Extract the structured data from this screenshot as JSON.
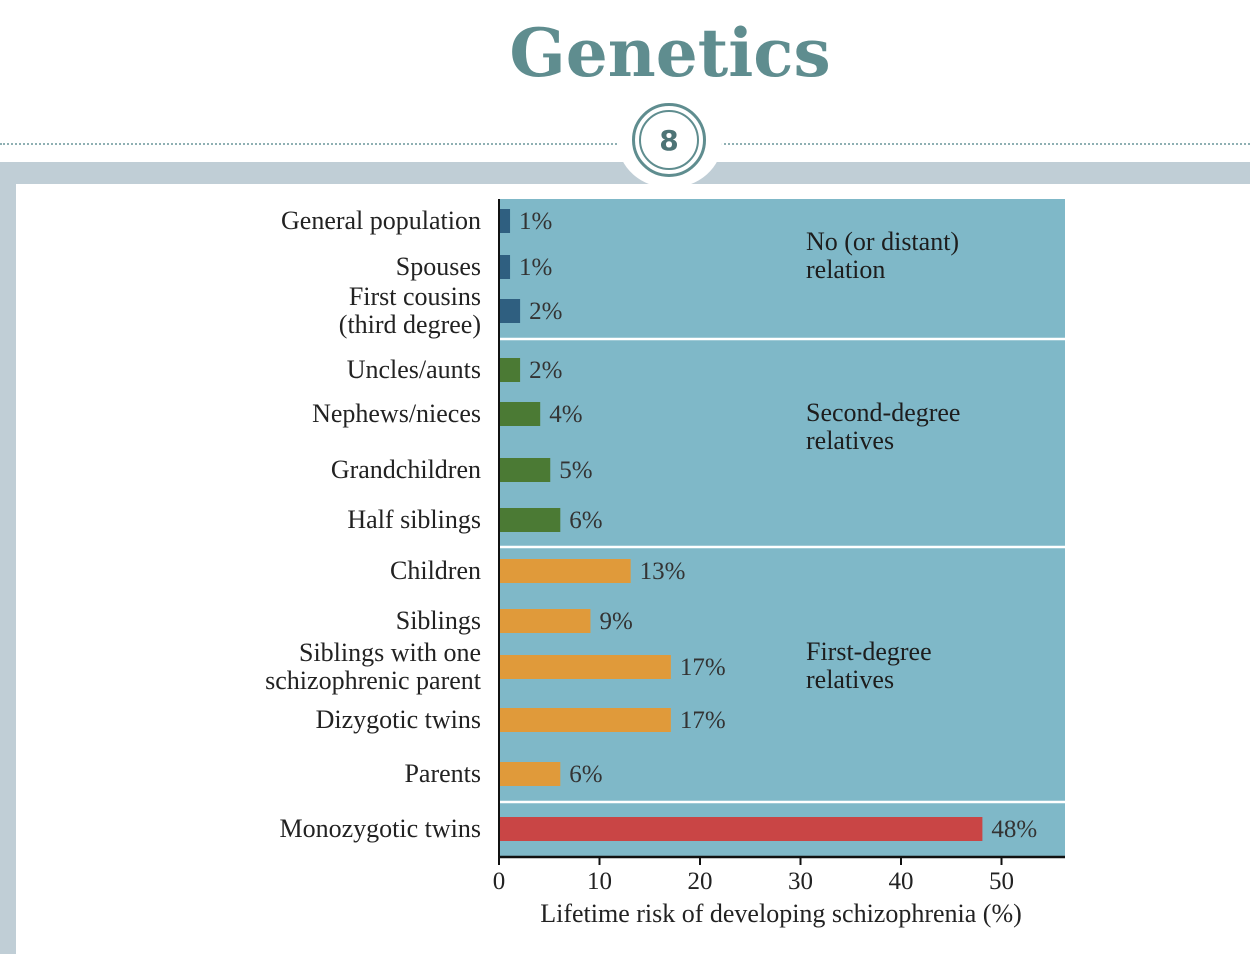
{
  "slide": {
    "title": "Genetics",
    "page_number": "8"
  },
  "colors": {
    "title": "#5f8d8f",
    "panel": "#7fb8c8",
    "no_relation": "#2f5f80",
    "second_degree": "#4b7a34",
    "first_degree": "#e09a3a",
    "monozygotic": "#c94545"
  },
  "chart_data": {
    "type": "bar",
    "orientation": "horizontal",
    "xlabel": "Lifetime risk of developing schizophrenia (%)",
    "xlim": [
      0,
      56
    ],
    "xticks": [
      0,
      10,
      20,
      30,
      40,
      50
    ],
    "grid": false,
    "categories": [
      "General population",
      "Spouses",
      "First cousins (third degree)",
      "Uncles/aunts",
      "Nephews/nieces",
      "Grandchildren",
      "Half siblings",
      "Children",
      "Siblings",
      "Siblings with one schizophrenic parent",
      "Dizygotic twins",
      "Parents",
      "Monozygotic twins"
    ],
    "category_lines": [
      [
        "General population"
      ],
      [
        "Spouses"
      ],
      [
        "First cousins",
        "(third degree)"
      ],
      [
        "Uncles/aunts"
      ],
      [
        "Nephews/nieces"
      ],
      [
        "Grandchildren"
      ],
      [
        "Half siblings"
      ],
      [
        "Children"
      ],
      [
        "Siblings"
      ],
      [
        "Siblings with one",
        "schizophrenic parent"
      ],
      [
        "Dizygotic twins"
      ],
      [
        "Parents"
      ],
      [
        "Monozygotic twins"
      ]
    ],
    "values": [
      1,
      1,
      2,
      2,
      4,
      5,
      6,
      13,
      9,
      17,
      17,
      6,
      48
    ],
    "value_labels": [
      "1%",
      "1%",
      "2%",
      "2%",
      "4%",
      "5%",
      "6%",
      "13%",
      "9%",
      "17%",
      "17%",
      "6%",
      "48%"
    ],
    "bar_group": [
      0,
      0,
      0,
      1,
      1,
      1,
      1,
      2,
      2,
      2,
      2,
      2,
      3
    ],
    "groups": [
      {
        "name": "No (or distant) relation",
        "lines": [
          "No (or distant)",
          "relation"
        ]
      },
      {
        "name": "Second-degree relatives",
        "lines": [
          "Second-degree",
          "relatives"
        ]
      },
      {
        "name": "First-degree relatives",
        "lines": [
          "First-degree",
          "relatives"
        ]
      },
      {
        "name": "",
        "lines": []
      }
    ]
  }
}
